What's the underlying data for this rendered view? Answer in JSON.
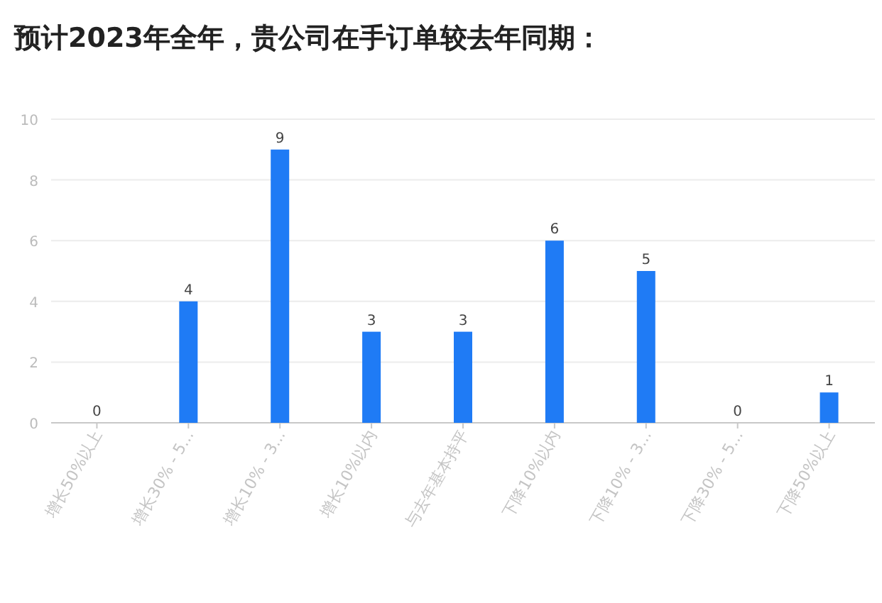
{
  "chart_data": {
    "type": "bar",
    "title": "预计2023年全年，贵公司在手订单较去年同期：",
    "categories": [
      "增长50%以上",
      "增长30% - 5...",
      "增长10% - 3...",
      "增长10%以内",
      "与去年基本持平",
      "下降10%以内",
      "下降10% - 3...",
      "下降30% - 5...",
      "下降50%以上"
    ],
    "values": [
      0,
      4,
      9,
      3,
      3,
      6,
      5,
      0,
      1
    ],
    "color": "#1f7bf5",
    "ylim": [
      0,
      10
    ],
    "yticks": [
      0,
      2,
      4,
      6,
      8,
      10
    ],
    "grid": "y",
    "data_labels": true
  }
}
